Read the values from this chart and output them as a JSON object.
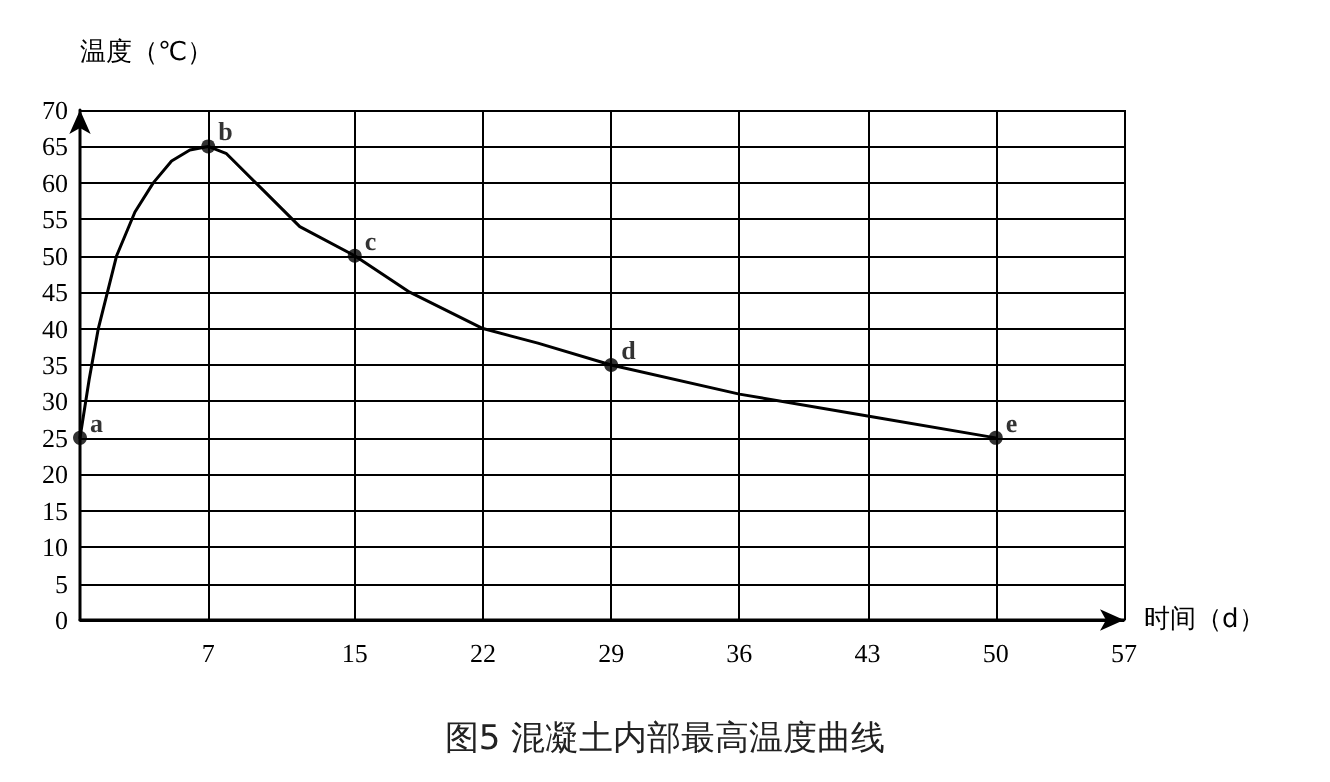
{
  "chart_data": {
    "type": "line",
    "title": "图5 混凝土内部最高温度曲线",
    "xlabel": "时间（d）",
    "ylabel": "温度（℃）",
    "xlim": [
      0,
      57
    ],
    "xticks": [
      7,
      15,
      22,
      29,
      36,
      43,
      50,
      57
    ],
    "ylim": [
      0,
      70
    ],
    "yticks": [
      0,
      5,
      10,
      15,
      20,
      25,
      30,
      35,
      40,
      45,
      50,
      55,
      60,
      65,
      70
    ],
    "grid": true,
    "marker": "none",
    "line_style": "solid",
    "series": [
      {
        "color": "#000000",
        "x": [
          0,
          0.5,
          1,
          2,
          3,
          4,
          5,
          6,
          7,
          8,
          10,
          12,
          15,
          18,
          22,
          25,
          29,
          36,
          43,
          50
        ],
        "values": [
          25,
          33,
          40,
          50,
          56,
          60,
          63,
          64.5,
          65,
          64,
          59,
          54,
          50,
          45,
          40,
          38,
          35,
          31,
          28,
          25
        ]
      },
      {
        "type": "scatter",
        "marker": "circle",
        "color": "#000000",
        "x": [
          0,
          7,
          15,
          29,
          50
        ],
        "values": [
          25,
          65,
          50,
          35,
          25
        ]
      }
    ],
    "annotations": [
      {
        "text": "a",
        "x": 0,
        "y": 25
      },
      {
        "text": "b",
        "x": 7,
        "y": 65
      },
      {
        "text": "c",
        "x": 15,
        "y": 50
      },
      {
        "text": "d",
        "x": 29,
        "y": 35
      },
      {
        "text": "e",
        "x": 50,
        "y": 25
      }
    ]
  }
}
